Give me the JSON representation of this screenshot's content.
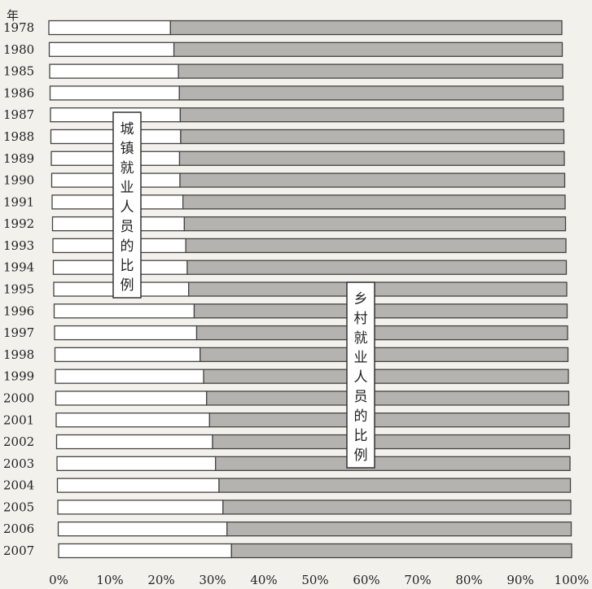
{
  "chart_data": {
    "type": "bar",
    "orientation": "horizontal",
    "stacked": true,
    "y_axis_title": "年",
    "categories": [
      "1978",
      "1980",
      "1985",
      "1986",
      "1987",
      "1988",
      "1989",
      "1990",
      "1991",
      "1992",
      "1993",
      "1994",
      "1995",
      "1996",
      "1997",
      "1998",
      "1999",
      "2000",
      "2001",
      "2002",
      "2003",
      "2004",
      "2005",
      "2006",
      "2007"
    ],
    "series": [
      {
        "name": "城镇就业人员的比例",
        "color": "#ffffff",
        "values": [
          23.7,
          24.3,
          25.1,
          25.2,
          25.3,
          25.3,
          25.0,
          25.0,
          25.5,
          25.7,
          25.9,
          26.1,
          26.3,
          27.3,
          27.7,
          28.3,
          28.9,
          29.4,
          29.9,
          30.4,
          30.9,
          31.5,
          32.2,
          32.9,
          33.7
        ]
      },
      {
        "name": "乡村就业人员的比例",
        "color": "#b5b3b0",
        "values": [
          76.3,
          75.7,
          74.9,
          74.8,
          74.7,
          74.7,
          75.0,
          75.0,
          74.5,
          74.3,
          74.1,
          73.9,
          73.7,
          72.7,
          72.3,
          71.7,
          71.1,
          70.6,
          70.1,
          69.6,
          69.1,
          68.5,
          67.8,
          67.1,
          66.3
        ]
      }
    ],
    "x_ticks": [
      "0%",
      "10%",
      "20%",
      "30%",
      "40%",
      "50%",
      "60%",
      "70%",
      "80%",
      "90%",
      "100%"
    ],
    "xlim": [
      0,
      100
    ],
    "annotations": [
      {
        "text": "城镇就业人员的比例",
        "series": 0
      },
      {
        "text": "乡村就业人员的比例",
        "series": 1
      }
    ]
  }
}
